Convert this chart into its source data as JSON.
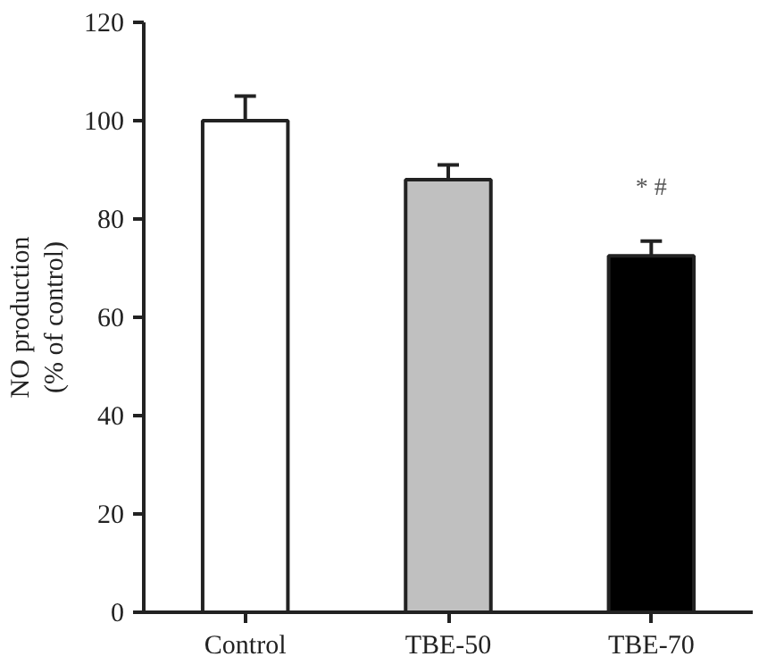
{
  "chart_data": {
    "type": "bar",
    "ylabel": "NO production\n(% of control)",
    "categories": [
      "Control",
      "TBE-50",
      "TBE-70"
    ],
    "values": [
      100,
      88,
      72.5
    ],
    "colors": [
      "#ffffff",
      "#c0c0c0",
      "#000000"
    ],
    "errors": [
      [
        100,
        105
      ],
      [
        88,
        91
      ],
      [
        72.5,
        75.5
      ]
    ],
    "ylim": [
      0,
      120
    ],
    "yticks": [
      0,
      20,
      40,
      60,
      80,
      100,
      120
    ],
    "annotations": [
      "* #"
    ],
    "grid": false
  }
}
